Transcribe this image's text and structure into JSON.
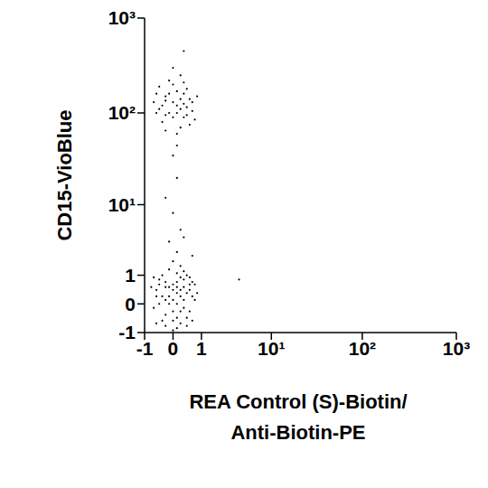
{
  "chart_data": {
    "type": "scatter",
    "xlabel": "REA Control (S)-Biotin/\nAnti-Biotin-PE",
    "ylabel": "CD15-VioBlue",
    "log": true,
    "color": "#000000",
    "marker": "circle",
    "xlim": [
      -1,
      1000
    ],
    "ylim": [
      -1,
      1000
    ],
    "xticks": [
      -1,
      0,
      1,
      {
        "value": 10,
        "label": "10¹"
      },
      {
        "value": 100,
        "label": "10²"
      },
      {
        "value": 1000,
        "label": "10³"
      }
    ],
    "yticks": [
      -1,
      0,
      1,
      {
        "value": 10,
        "label": "10¹"
      },
      {
        "value": 100,
        "label": "10²"
      },
      {
        "value": 1000,
        "label": "10³"
      }
    ],
    "x": [
      0.1,
      -0.2,
      0.3,
      -0.4,
      0.5,
      0.0,
      0.2,
      -0.1,
      0.4,
      -0.3,
      0.6,
      0.1,
      -0.5,
      0.2,
      0.0,
      -0.2,
      0.3,
      0.7,
      -0.6,
      0.1,
      0.4,
      -0.1,
      0.2,
      -0.3,
      0.5,
      0.0,
      -0.4,
      0.3,
      0.1,
      -0.2,
      0.8,
      -0.7,
      0.2,
      0.0,
      0.6,
      -0.5,
      0.4,
      -0.1,
      0.1,
      0.3,
      -0.3,
      0.5,
      0.0,
      -0.2,
      0.2,
      0.7,
      -0.6,
      0.1,
      0.4,
      -0.4,
      0.0,
      0.2,
      -0.1,
      0.3,
      -0.5,
      0.6,
      0.1,
      -0.2,
      0.0,
      0.5,
      0.1,
      -0.1,
      0.2,
      0.0,
      0.3,
      -0.2,
      0.1,
      0.6,
      0.1,
      -0.2,
      0.3,
      0.0,
      -0.4,
      0.5,
      0.2,
      -0.1,
      0.4,
      -0.3,
      0.0,
      0.6,
      -0.5,
      0.2,
      0.1,
      -0.2,
      0.3,
      0.7,
      -0.6,
      0.1,
      0.4,
      -0.1,
      0.2,
      -0.3,
      0.5,
      0.0,
      -0.4,
      0.3,
      0.1,
      -0.2,
      0.8,
      0.0,
      0.2,
      -0.1,
      0.6,
      -0.5,
      0.3,
      0.1,
      -0.2,
      0.4,
      0.3,
      0.0,
      4
    ],
    "values": [
      0.3,
      0.5,
      0.1,
      0.8,
      0.4,
      -0.2,
      0.9,
      0.0,
      -0.4,
      0.2,
      0.7,
      1.1,
      0.4,
      -0.6,
      0.6,
      -0.3,
      0.5,
      0.1,
      -0.1,
      -0.8,
      1.0,
      1.3,
      0.2,
      -0.5,
      -0.2,
      0.4,
      0.0,
      0.8,
      -0.4,
      0.7,
      0.3,
      0.5,
      1.5,
      -0.9,
      -0.5,
      -0.6,
      0.3,
      0.2,
      0.7,
      -0.1,
      1.0,
      0.9,
      0.1,
      -0.7,
      0.4,
      0.6,
      0.9,
      0.0,
      -0.7,
      0.6,
      1.8,
      -0.2,
      0.5,
      1.2,
      0.2,
      0.2,
      0.5,
      0.1,
      -0.5,
      0.6,
      2.5,
      3.5,
      5,
      8,
      4,
      12,
      20,
      2.2,
      120,
      150,
      90,
      200,
      110,
      140,
      70,
      100,
      180,
      80,
      130,
      105,
      160,
      250,
      60,
      95,
      125,
      85,
      130,
      170,
      115,
      220,
      140,
      120,
      75,
      90,
      190,
      160,
      45,
      135,
      150,
      300,
      110,
      160,
      130,
      100,
      210,
      100,
      65,
      95,
      450,
      35,
      0.8
    ]
  }
}
